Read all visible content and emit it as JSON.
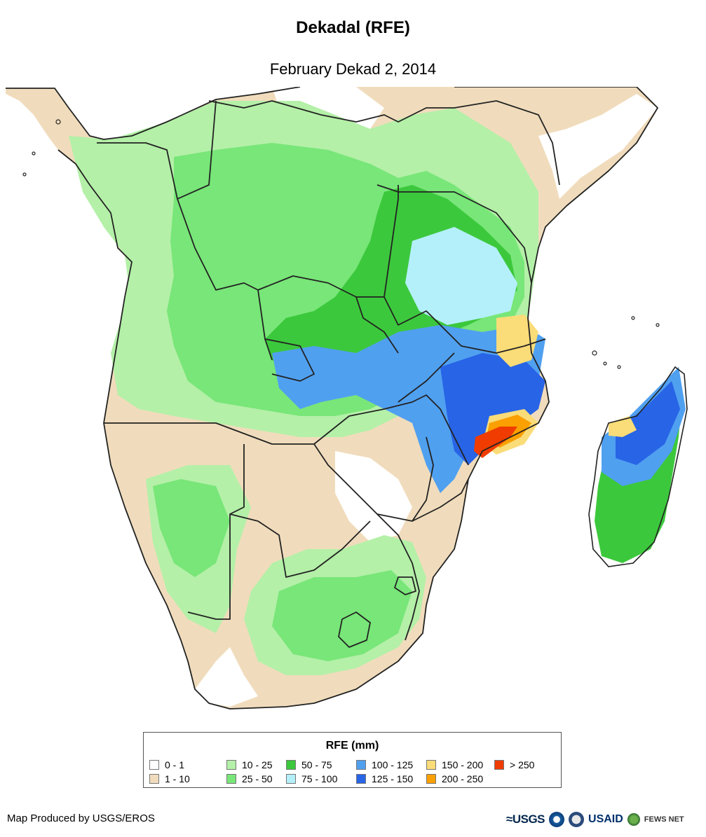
{
  "header": {
    "title": "Dekadal (RFE)",
    "subtitle": "February Dekad 2, 2014"
  },
  "legend": {
    "title": "RFE (mm)",
    "items": [
      {
        "label": "0 - 1",
        "color": "#ffffff"
      },
      {
        "label": "1 - 10",
        "color": "#f0dcbc"
      },
      {
        "label": "10 - 25",
        "color": "#b4f0a8"
      },
      {
        "label": "25 - 50",
        "color": "#78e678"
      },
      {
        "label": "50 - 75",
        "color": "#3cc83c"
      },
      {
        "label": "75 - 100",
        "color": "#b4f0fa"
      },
      {
        "label": "100 - 125",
        "color": "#50a0f0"
      },
      {
        "label": "125 - 150",
        "color": "#2864e6"
      },
      {
        "label": "150 - 200",
        "color": "#fadc78"
      },
      {
        "label": "200 - 250",
        "color": "#faa000"
      },
      {
        "label": "> 250",
        "color": "#f03c00"
      }
    ]
  },
  "footer": {
    "credit": "Map Produced by USGS/EROS",
    "logos": {
      "usgs": "≈USGS",
      "usaid": "USAID",
      "fewsnet": "FEWS NET"
    }
  }
}
